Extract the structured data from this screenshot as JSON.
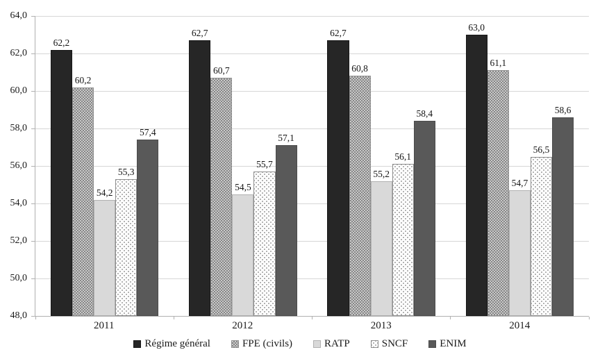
{
  "chart_data": {
    "type": "bar",
    "title": "",
    "categories": [
      "2011",
      "2012",
      "2013",
      "2014"
    ],
    "series": [
      {
        "name": "Régime général",
        "pattern": "solid-dark",
        "color": "#262626",
        "values": [
          62.2,
          62.7,
          62.7,
          63.0
        ],
        "value_labels": [
          "62,2",
          "62,7",
          "62,7",
          "63,0"
        ]
      },
      {
        "name": "FPE (civils)",
        "pattern": "checker",
        "color": "#a8a8a8",
        "values": [
          60.2,
          60.7,
          60.8,
          61.1
        ],
        "value_labels": [
          "60,2",
          "60,7",
          "60,8",
          "61,1"
        ]
      },
      {
        "name": "RATP",
        "pattern": "solid-light",
        "color": "#d9d9d9",
        "values": [
          54.2,
          54.5,
          55.2,
          54.7
        ],
        "value_labels": [
          "54,2",
          "54,5",
          "55,2",
          "54,7"
        ]
      },
      {
        "name": "SNCF",
        "pattern": "dots",
        "color": "#ffffff",
        "values": [
          55.3,
          55.7,
          56.1,
          56.5
        ],
        "value_labels": [
          "55,3",
          "55,7",
          "56,1",
          "56,5"
        ]
      },
      {
        "name": "ENIM",
        "pattern": "solid-gray",
        "color": "#595959",
        "values": [
          57.4,
          57.1,
          58.4,
          58.6
        ],
        "value_labels": [
          "57,4",
          "57,1",
          "58,4",
          "58,6"
        ]
      }
    ],
    "y_axis": {
      "min": 48,
      "max": 64,
      "step": 2,
      "tick_labels": [
        "48,0",
        "50,0",
        "52,0",
        "54,0",
        "56,0",
        "58,0",
        "60,0",
        "62,0",
        "64,0"
      ]
    },
    "grid": true,
    "legend_position": "bottom",
    "colors": {
      "gridline": "#d6d6d6",
      "axis": "#b0b0b0",
      "text": "#1a1a1a",
      "background": "#ffffff"
    }
  }
}
